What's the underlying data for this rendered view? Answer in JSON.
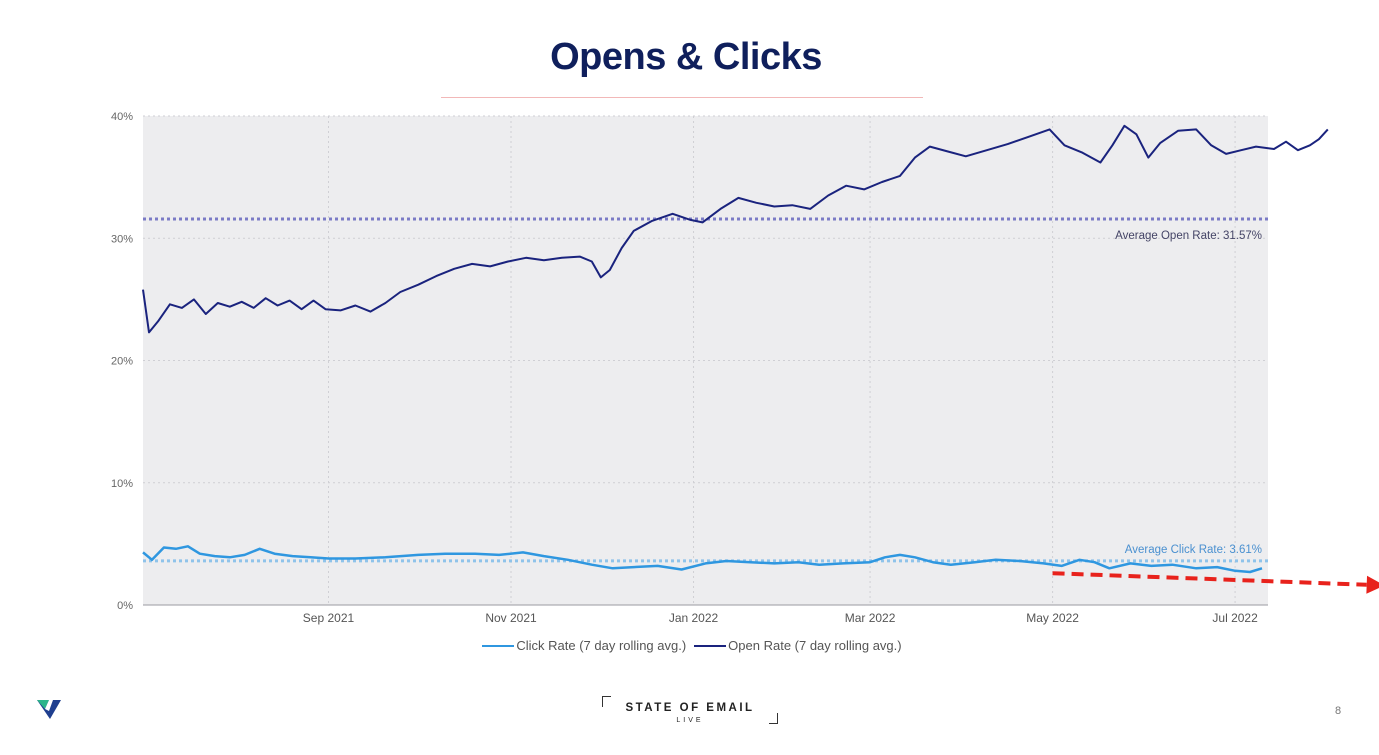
{
  "slide": {
    "title": "Opens & Clicks",
    "page_number": "8",
    "brand_main": "STATE OF EMAIL",
    "brand_sub": "LIVE",
    "logo_icon": "validity-v-logo-icon"
  },
  "colors": {
    "open_rate": "#1a237e",
    "click_rate": "#2f97e0",
    "open_avg": "#7b7bc6",
    "click_avg": "#8fc3ea",
    "trend_arrow": "#e8221c",
    "plot_bg": "#ededef",
    "title": "#0f1f5c"
  },
  "chart_data": {
    "type": "line",
    "title": "",
    "xlabel": "",
    "ylabel": "",
    "x_range": [
      "2021-07-01",
      "2022-07-12"
    ],
    "ylim": [
      0,
      40
    ],
    "y_ticks": [
      {
        "value": 0,
        "label": "0%"
      },
      {
        "value": 10,
        "label": "10%"
      },
      {
        "value": 20,
        "label": "20%"
      },
      {
        "value": 30,
        "label": "30%"
      },
      {
        "value": 40,
        "label": "40%"
      }
    ],
    "x_ticks": [
      {
        "date": "2021-09-01",
        "label": "Sep 2021"
      },
      {
        "date": "2021-11-01",
        "label": "Nov 2021"
      },
      {
        "date": "2022-01-01",
        "label": "Jan 2022"
      },
      {
        "date": "2022-03-01",
        "label": "Mar 2022"
      },
      {
        "date": "2022-05-01",
        "label": "May 2022"
      },
      {
        "date": "2022-07-01",
        "label": "Jul 2022"
      }
    ],
    "grid": true,
    "legend_position": "bottom-center",
    "series": [
      {
        "name": "Click Rate (7 day rolling avg.)",
        "color": "#2f97e0",
        "points": [
          [
            "2021-07-01",
            4.3
          ],
          [
            "2021-07-04",
            3.7
          ],
          [
            "2021-07-08",
            4.7
          ],
          [
            "2021-07-12",
            4.6
          ],
          [
            "2021-07-16",
            4.8
          ],
          [
            "2021-07-20",
            4.2
          ],
          [
            "2021-07-25",
            4.0
          ],
          [
            "2021-07-30",
            3.9
          ],
          [
            "2021-08-04",
            4.1
          ],
          [
            "2021-08-09",
            4.6
          ],
          [
            "2021-08-14",
            4.2
          ],
          [
            "2021-08-20",
            4.0
          ],
          [
            "2021-08-26",
            3.9
          ],
          [
            "2021-09-01",
            3.8
          ],
          [
            "2021-09-10",
            3.8
          ],
          [
            "2021-09-20",
            3.9
          ],
          [
            "2021-10-01",
            4.1
          ],
          [
            "2021-10-10",
            4.2
          ],
          [
            "2021-10-20",
            4.2
          ],
          [
            "2021-10-28",
            4.1
          ],
          [
            "2021-11-05",
            4.3
          ],
          [
            "2021-11-12",
            4.0
          ],
          [
            "2021-11-20",
            3.7
          ],
          [
            "2021-11-28",
            3.3
          ],
          [
            "2021-12-05",
            3.0
          ],
          [
            "2021-12-12",
            3.1
          ],
          [
            "2021-12-20",
            3.2
          ],
          [
            "2021-12-28",
            2.9
          ],
          [
            "2022-01-05",
            3.4
          ],
          [
            "2022-01-12",
            3.6
          ],
          [
            "2022-01-20",
            3.5
          ],
          [
            "2022-01-28",
            3.4
          ],
          [
            "2022-02-05",
            3.5
          ],
          [
            "2022-02-12",
            3.3
          ],
          [
            "2022-02-20",
            3.4
          ],
          [
            "2022-03-01",
            3.5
          ],
          [
            "2022-03-06",
            3.9
          ],
          [
            "2022-03-11",
            4.1
          ],
          [
            "2022-03-16",
            3.9
          ],
          [
            "2022-03-22",
            3.5
          ],
          [
            "2022-03-28",
            3.3
          ],
          [
            "2022-04-05",
            3.5
          ],
          [
            "2022-04-12",
            3.7
          ],
          [
            "2022-04-20",
            3.6
          ],
          [
            "2022-04-28",
            3.4
          ],
          [
            "2022-05-04",
            3.2
          ],
          [
            "2022-05-10",
            3.7
          ],
          [
            "2022-05-15",
            3.5
          ],
          [
            "2022-05-20",
            3.0
          ],
          [
            "2022-05-27",
            3.4
          ],
          [
            "2022-06-03",
            3.2
          ],
          [
            "2022-06-10",
            3.3
          ],
          [
            "2022-06-18",
            3.0
          ],
          [
            "2022-06-25",
            3.1
          ],
          [
            "2022-07-01",
            2.8
          ],
          [
            "2022-07-06",
            2.7
          ],
          [
            "2022-07-10",
            3.0
          ]
        ]
      },
      {
        "name": "Open Rate (7 day rolling avg.)",
        "color": "#1a237e",
        "points": [
          [
            "2021-07-01",
            25.8
          ],
          [
            "2021-07-03",
            22.3
          ],
          [
            "2021-07-06",
            23.2
          ],
          [
            "2021-07-10",
            24.6
          ],
          [
            "2021-07-14",
            24.3
          ],
          [
            "2021-07-18",
            25.0
          ],
          [
            "2021-07-22",
            23.8
          ],
          [
            "2021-07-26",
            24.7
          ],
          [
            "2021-07-30",
            24.4
          ],
          [
            "2021-08-03",
            24.8
          ],
          [
            "2021-08-07",
            24.3
          ],
          [
            "2021-08-11",
            25.1
          ],
          [
            "2021-08-15",
            24.5
          ],
          [
            "2021-08-19",
            24.9
          ],
          [
            "2021-08-23",
            24.2
          ],
          [
            "2021-08-27",
            24.9
          ],
          [
            "2021-08-31",
            24.2
          ],
          [
            "2021-09-05",
            24.1
          ],
          [
            "2021-09-10",
            24.5
          ],
          [
            "2021-09-15",
            24.0
          ],
          [
            "2021-09-20",
            24.7
          ],
          [
            "2021-09-25",
            25.6
          ],
          [
            "2021-10-01",
            26.2
          ],
          [
            "2021-10-07",
            26.9
          ],
          [
            "2021-10-13",
            27.5
          ],
          [
            "2021-10-19",
            27.9
          ],
          [
            "2021-10-25",
            27.7
          ],
          [
            "2021-10-31",
            28.1
          ],
          [
            "2021-11-06",
            28.4
          ],
          [
            "2021-11-12",
            28.2
          ],
          [
            "2021-11-18",
            28.4
          ],
          [
            "2021-11-24",
            28.5
          ],
          [
            "2021-11-28",
            28.1
          ],
          [
            "2021-12-01",
            26.8
          ],
          [
            "2021-12-04",
            27.4
          ],
          [
            "2021-12-08",
            29.2
          ],
          [
            "2021-12-12",
            30.6
          ],
          [
            "2021-12-18",
            31.4
          ],
          [
            "2021-12-25",
            32.0
          ],
          [
            "2021-12-31",
            31.5
          ],
          [
            "2022-01-04",
            31.3
          ],
          [
            "2022-01-10",
            32.4
          ],
          [
            "2022-01-16",
            33.3
          ],
          [
            "2022-01-22",
            32.9
          ],
          [
            "2022-01-28",
            32.6
          ],
          [
            "2022-02-03",
            32.7
          ],
          [
            "2022-02-09",
            32.4
          ],
          [
            "2022-02-15",
            33.5
          ],
          [
            "2022-02-21",
            34.3
          ],
          [
            "2022-02-27",
            34.0
          ],
          [
            "2022-03-05",
            34.6
          ],
          [
            "2022-03-11",
            35.1
          ],
          [
            "2022-03-16",
            36.6
          ],
          [
            "2022-03-21",
            37.5
          ],
          [
            "2022-03-27",
            37.1
          ],
          [
            "2022-04-02",
            36.7
          ],
          [
            "2022-04-09",
            37.2
          ],
          [
            "2022-04-16",
            37.7
          ],
          [
            "2022-04-23",
            38.3
          ],
          [
            "2022-04-30",
            38.9
          ],
          [
            "2022-05-05",
            37.6
          ],
          [
            "2022-05-11",
            37.0
          ],
          [
            "2022-05-17",
            36.2
          ],
          [
            "2022-05-21",
            37.6
          ],
          [
            "2022-05-25",
            39.2
          ],
          [
            "2022-05-29",
            38.5
          ],
          [
            "2022-06-02",
            36.6
          ],
          [
            "2022-06-06",
            37.8
          ],
          [
            "2022-06-12",
            38.8
          ],
          [
            "2022-06-18",
            38.9
          ],
          [
            "2022-06-23",
            37.6
          ],
          [
            "2022-06-28",
            36.9
          ],
          [
            "2022-07-03",
            37.2
          ],
          [
            "2022-07-08",
            37.5
          ],
          [
            "2022-07-14",
            37.3
          ],
          [
            "2022-07-18",
            37.9
          ],
          [
            "2022-07-22",
            37.2
          ],
          [
            "2022-07-26",
            37.6
          ],
          [
            "2022-07-29",
            38.1
          ],
          [
            "2022-08-01",
            38.9
          ]
        ]
      }
    ],
    "reference_lines": [
      {
        "label": "Average Open Rate: 31.57%",
        "value": 31.57,
        "color": "#7b7bc6"
      },
      {
        "label": "Average Click Rate: 3.61%",
        "value": 3.61,
        "color": "#8fc3ea"
      }
    ],
    "annotations": [
      {
        "type": "dashed-arrow",
        "from": [
          "2022-05-01",
          2.6
        ],
        "to": [
          "2022-08-20",
          1.6
        ],
        "color": "#e8221c"
      }
    ]
  }
}
